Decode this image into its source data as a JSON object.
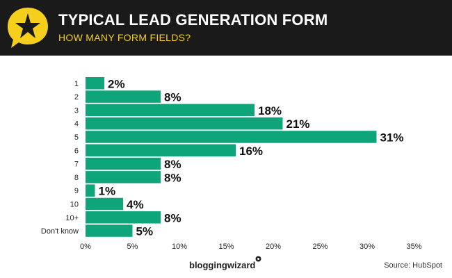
{
  "header": {
    "title": "TYPICAL LEAD GENERATION FORM",
    "subtitle": "HOW MANY FORM FIELDS?",
    "logo_icon": "star-speech-bubble-icon",
    "accent_color": "#f5cf1c",
    "background_color": "#1a1a1a"
  },
  "footer": {
    "brand": "bloggingwizard",
    "source": "Source: HubSpot"
  },
  "chart_data": {
    "type": "bar",
    "orientation": "horizontal",
    "categories": [
      "1",
      "2",
      "3",
      "4",
      "5",
      "6",
      "7",
      "8",
      "9",
      "10",
      "10+",
      "Don't know"
    ],
    "values": [
      2,
      8,
      18,
      21,
      31,
      16,
      8,
      8,
      1,
      4,
      8,
      5
    ],
    "value_labels": [
      "2%",
      "8%",
      "18%",
      "21%",
      "31%",
      "16%",
      "8%",
      "8%",
      "1%",
      "4%",
      "8%",
      "5%"
    ],
    "xlim": [
      0,
      35
    ],
    "xticks": [
      0,
      5,
      10,
      15,
      20,
      25,
      30,
      35
    ],
    "xtick_labels": [
      "0%",
      "5%",
      "10%",
      "15%",
      "20%",
      "25%",
      "30%",
      "35%"
    ],
    "bar_color": "#0fa57a",
    "grid": false,
    "legend": "none"
  }
}
